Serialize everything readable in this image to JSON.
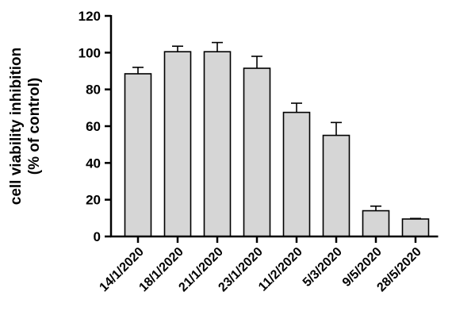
{
  "chart_data": {
    "type": "bar",
    "categories": [
      "14/1/2020",
      "18/1/2020",
      "21/1/2020",
      "23/1/2020",
      "11/2/2020",
      "5/3/2020",
      "9/5/2020",
      "28/5/2020"
    ],
    "values": [
      88.5,
      100.5,
      100.5,
      91.5,
      67.5,
      55,
      14,
      9.5
    ],
    "error_upper": [
      3.5,
      3,
      5,
      6.5,
      5,
      7,
      2.5,
      0.3
    ],
    "ylabel_line1": "cell viability inhibition",
    "ylabel_line2": "(% of control)",
    "xlabel": "",
    "title": "",
    "ylim": [
      0,
      120
    ],
    "yticks": [
      0,
      20,
      40,
      60,
      80,
      100,
      120
    ],
    "grid": false,
    "colors": {
      "bar_fill": "#d6d6d6",
      "bar_stroke": "#000000"
    }
  }
}
